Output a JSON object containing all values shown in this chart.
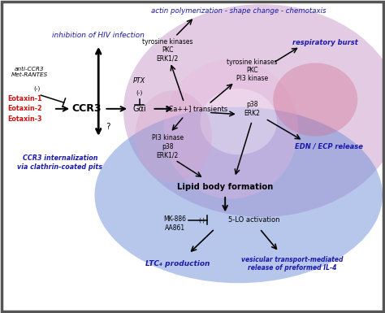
{
  "fig_width": 4.74,
  "fig_height": 3.85,
  "dpi": 100,
  "bg_color": "#ffffff",
  "blue_color": "#1a1aaa",
  "red_color": "#cc1111",
  "black_color": "#111111",
  "top_text": "actin polymerization - shape change - chemotaxis",
  "inhibition_text": "inhibition of HIV infection",
  "anti_ccr3": "anti-CCR3\nMet-RANTES",
  "eotaxins": [
    "Eotaxin-1",
    "Eotaxin-2",
    "Eotaxin-3"
  ],
  "ccr3_label": "CCR3",
  "gai_label": "Gαi",
  "ca_label": "[Ca++] transients",
  "ptx_label": "PTX",
  "tyr1_label": "tyrosine kinases\nPKC\nERK1/2",
  "tyr2_label": "tyrosine kinases\nPKC\nPI3 kinase",
  "pi3_label": "PI3 kinase\np38\nERK1/2",
  "p38_label": "p38\nERK2",
  "lipid_label": "Lipid body formation",
  "mk_label": "MK-886\nAA861",
  "fivelo_label": "5-LO activation",
  "ltc4_label": "LTC₄ production",
  "vesicular_label": "vesicular transport-mediated\nrelease of preformed IL-4",
  "resp_burst_label": "respiratory burst",
  "edn_label": "EDN / ECP release",
  "ccr3_intern_label": "CCR3 internalization\nvia clathrin-coated pits",
  "border_color": "#555555"
}
